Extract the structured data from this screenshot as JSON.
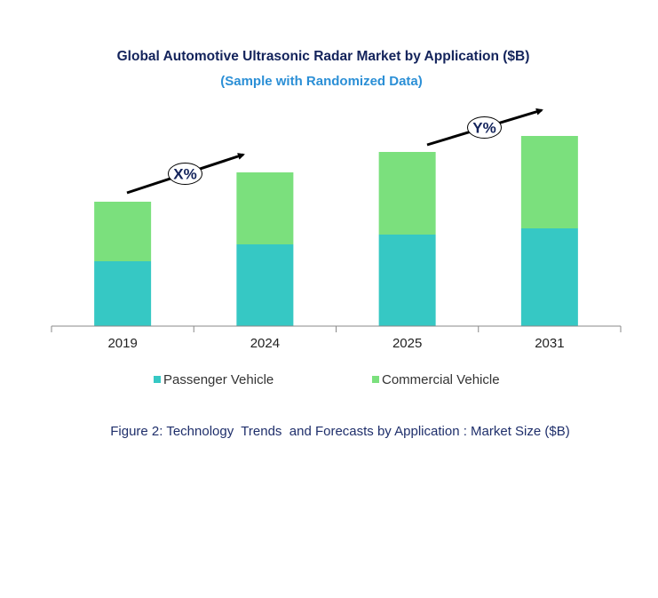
{
  "chart_data": {
    "type": "bar",
    "stacked": true,
    "title": "Global Automotive Ultrasonic Radar Market by Application ($B)",
    "subtitle": "(Sample with Randomized Data)",
    "categories": [
      "2019",
      "2024",
      "2025",
      "2031"
    ],
    "series": [
      {
        "name": "Passenger Vehicle",
        "color": "#36c8c4",
        "values": [
          73,
          92,
          103,
          110
        ]
      },
      {
        "name": "Commercial Vehicle",
        "color": "#7be07d",
        "values": [
          67,
          81,
          93,
          104
        ]
      }
    ],
    "ylim": [
      0,
      220
    ],
    "grid": false,
    "y_axis_shown": false,
    "legend_position": "bottom",
    "annotations": [
      {
        "text": "X%",
        "from": "2019",
        "to": "2024"
      },
      {
        "text": "Y%",
        "from": "2025",
        "to": "2031"
      }
    ],
    "caption": "Figure 2: Technology  Trends  and Forecasts by Application : Market Size ($B)"
  },
  "colors": {
    "title": "#13235b",
    "subtitle": "#2b8fd6",
    "caption": "#1f2f6b",
    "axis": "#888888"
  }
}
